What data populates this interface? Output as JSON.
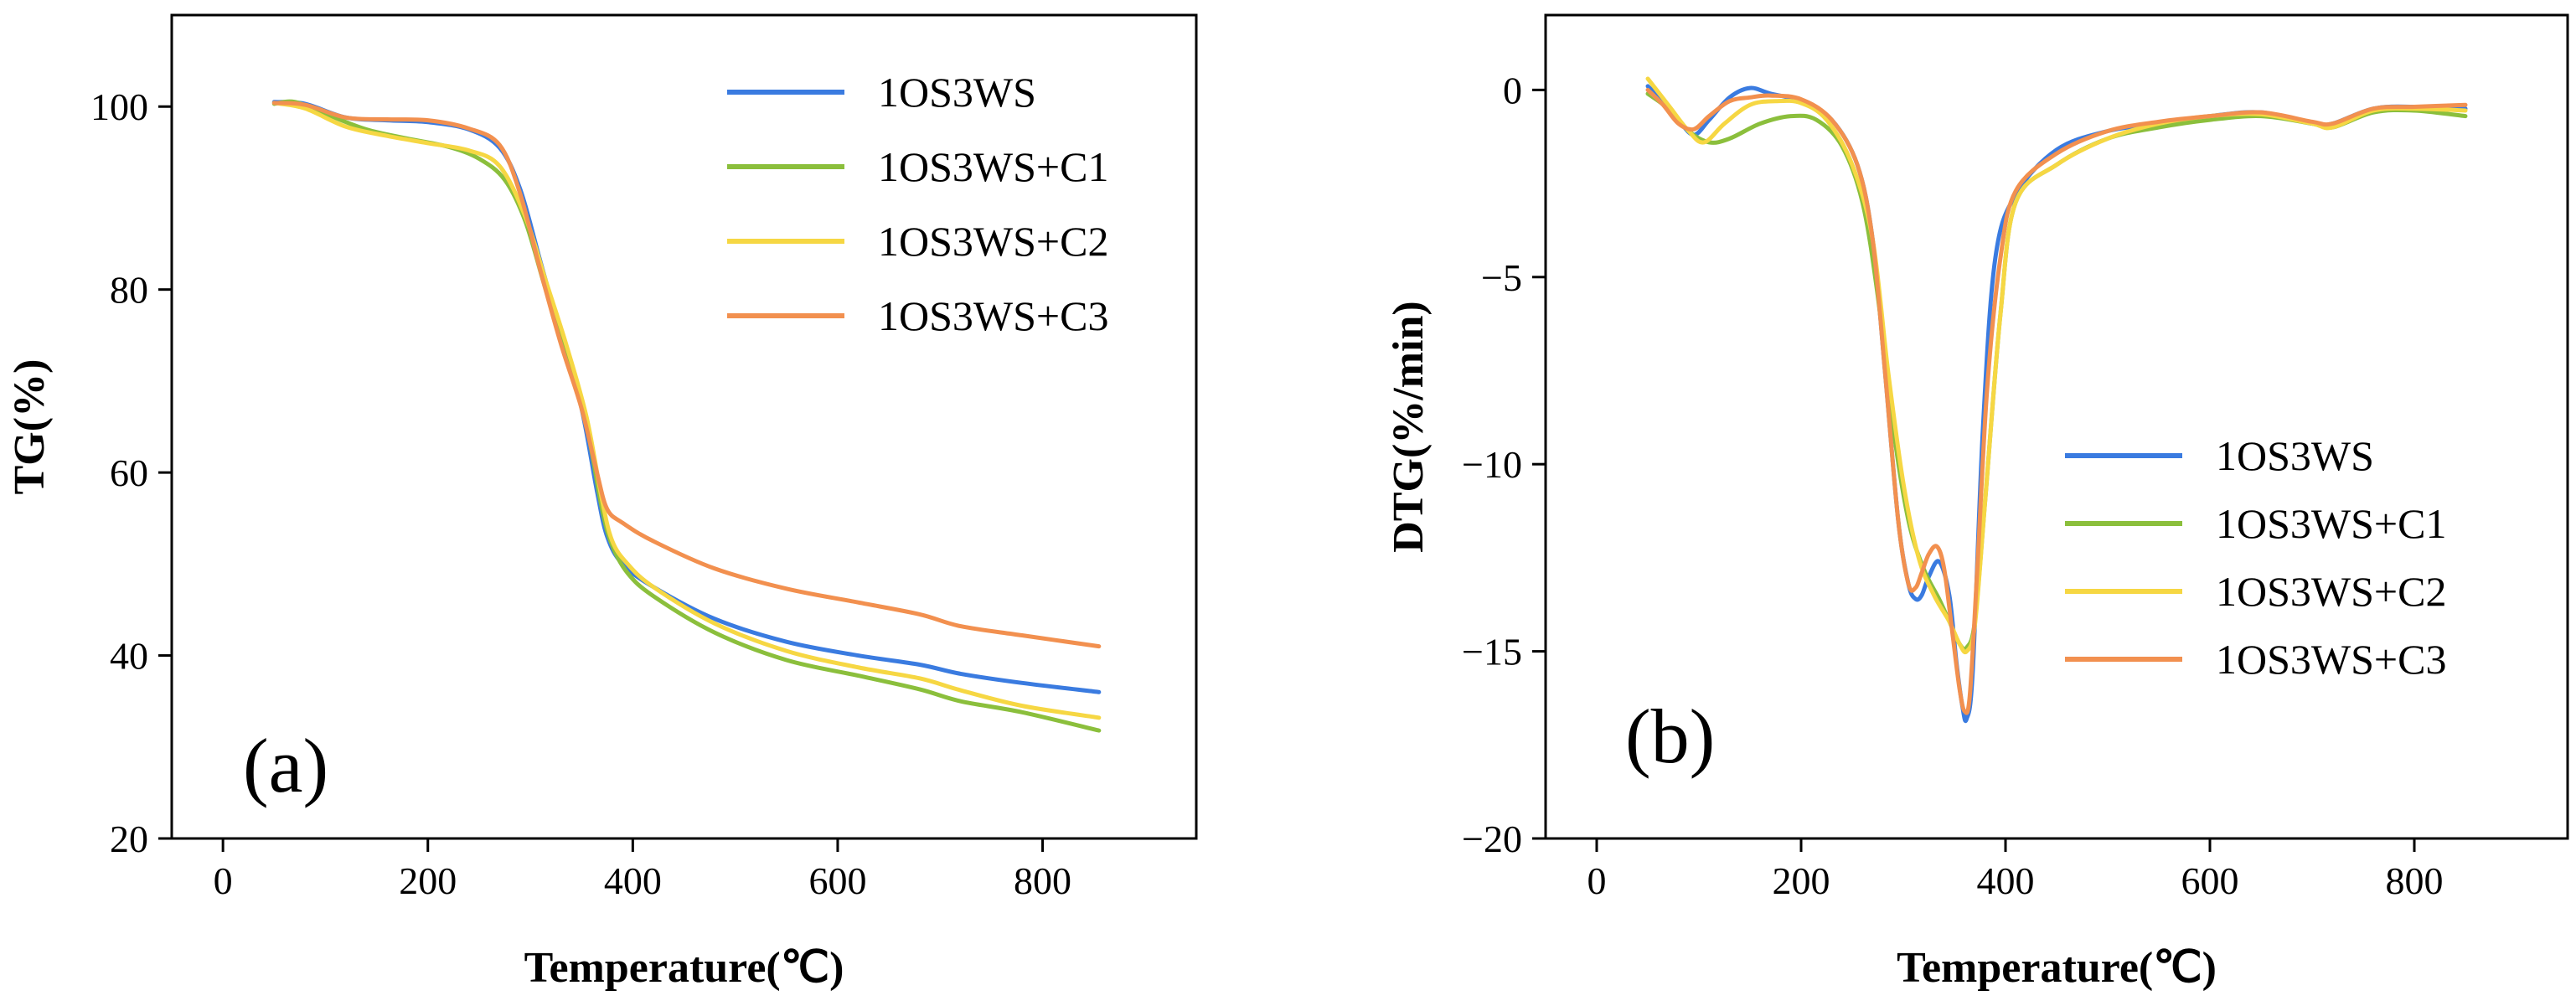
{
  "chart_data": [
    {
      "type": "line",
      "panel_label": "(a)",
      "xlabel": "Temperature(℃)",
      "ylabel": "TG(%)",
      "xlim": [
        -50,
        950
      ],
      "ylim": [
        20,
        110
      ],
      "xticks": [
        0,
        200,
        400,
        600,
        800
      ],
      "yticks": [
        20,
        40,
        60,
        80,
        100
      ],
      "grid": false,
      "legend_position": "top-right",
      "series": [
        {
          "name": "1OS3WS",
          "color": "#3a7be0",
          "x": [
            50,
            80,
            120,
            160,
            200,
            240,
            270,
            290,
            310,
            330,
            350,
            365,
            375,
            390,
            420,
            480,
            550,
            620,
            680,
            720,
            780,
            855
          ],
          "y": [
            100.5,
            100.3,
            98.8,
            98.5,
            98.3,
            97.5,
            95.5,
            91,
            83,
            75,
            67,
            58,
            53,
            50,
            47.5,
            44,
            41.5,
            40,
            39,
            38,
            37,
            36
          ]
        },
        {
          "name": "1OS3WS+C1",
          "color": "#8bbf3c",
          "x": [
            50,
            70,
            100,
            140,
            180,
            220,
            250,
            275,
            295,
            315,
            335,
            355,
            370,
            380,
            395,
            420,
            480,
            550,
            620,
            680,
            720,
            780,
            855
          ],
          "y": [
            100.3,
            100.5,
            99.2,
            97.5,
            96.5,
            95.6,
            94.3,
            92,
            87.5,
            80,
            73,
            65,
            56,
            52,
            49,
            46.5,
            42.5,
            39.5,
            37.8,
            36.3,
            35,
            33.8,
            31.8
          ]
        },
        {
          "name": "1OS3WS+C2",
          "color": "#f6d743",
          "x": [
            50,
            80,
            120,
            160,
            200,
            240,
            270,
            295,
            315,
            335,
            355,
            370,
            380,
            395,
            420,
            480,
            550,
            620,
            680,
            720,
            780,
            855
          ],
          "y": [
            100.4,
            99.8,
            97.8,
            96.8,
            96,
            95.2,
            93.5,
            88,
            81,
            74,
            66,
            57,
            52.5,
            50,
            47.5,
            43.5,
            40.5,
            38.7,
            37.5,
            36.2,
            34.5,
            33.2
          ]
        },
        {
          "name": "1OS3WS+C3",
          "color": "#f2904f",
          "x": [
            50,
            80,
            120,
            160,
            200,
            240,
            270,
            290,
            310,
            330,
            350,
            365,
            375,
            390,
            420,
            480,
            550,
            620,
            680,
            720,
            780,
            855
          ],
          "y": [
            100.4,
            100.2,
            98.8,
            98.6,
            98.5,
            97.6,
            95.8,
            90.5,
            82,
            74,
            67,
            60,
            56,
            54.5,
            52.5,
            49.5,
            47.3,
            45.8,
            44.5,
            43.2,
            42.2,
            41
          ]
        }
      ]
    },
    {
      "type": "line",
      "panel_label": "(b)",
      "xlabel": "Temperature(℃)",
      "ylabel": "DTG(%/min)",
      "xlim": [
        -50,
        950
      ],
      "ylim": [
        -20,
        2
      ],
      "xticks": [
        0,
        200,
        400,
        600,
        800
      ],
      "yticks": [
        -20,
        -15,
        -10,
        -5,
        0
      ],
      "ytick_labels": [
        "−20",
        "−15",
        "−10",
        "−5",
        "0"
      ],
      "grid": false,
      "legend_position": "bottom-right",
      "series": [
        {
          "name": "1OS3WS",
          "color": "#3a7be0",
          "x": [
            50,
            65,
            80,
            95,
            110,
            130,
            150,
            170,
            200,
            230,
            255,
            270,
            282,
            295,
            305,
            312,
            318,
            325,
            335,
            345,
            352,
            358,
            362,
            368,
            378,
            390,
            410,
            450,
            500,
            550,
            600,
            650,
            700,
            720,
            760,
            800,
            850
          ],
          "y": [
            0.1,
            -0.3,
            -0.8,
            -1.2,
            -0.8,
            -0.2,
            0.05,
            -0.1,
            -0.3,
            -0.8,
            -2,
            -4,
            -7.5,
            -11.5,
            -13.2,
            -13.6,
            -13.5,
            -13,
            -12.6,
            -13.5,
            -15.3,
            -16.5,
            -16.8,
            -15.5,
            -9,
            -4.5,
            -2.8,
            -1.6,
            -1.1,
            -0.9,
            -0.7,
            -0.6,
            -0.9,
            -0.9,
            -0.5,
            -0.45,
            -0.5
          ]
        },
        {
          "name": "1OS3WS+C1",
          "color": "#8bbf3c",
          "x": [
            50,
            70,
            90,
            110,
            130,
            160,
            190,
            215,
            240,
            260,
            275,
            290,
            305,
            320,
            335,
            345,
            355,
            362,
            370,
            380,
            395,
            410,
            450,
            500,
            550,
            600,
            650,
            700,
            720,
            760,
            800,
            850
          ],
          "y": [
            -0.1,
            -0.5,
            -1.1,
            -1.4,
            -1.3,
            -0.9,
            -0.7,
            -0.8,
            -1.5,
            -3,
            -5.5,
            -9,
            -11.5,
            -12.8,
            -13.6,
            -14.2,
            -14.8,
            -14.9,
            -14.2,
            -11,
            -6,
            -3,
            -2,
            -1.3,
            -1,
            -0.8,
            -0.7,
            -0.9,
            -1,
            -0.6,
            -0.55,
            -0.7
          ]
        },
        {
          "name": "1OS3WS+C2",
          "color": "#f6d743",
          "x": [
            50,
            70,
            90,
            105,
            125,
            150,
            175,
            200,
            225,
            250,
            270,
            285,
            300,
            315,
            330,
            345,
            355,
            362,
            370,
            380,
            395,
            410,
            450,
            500,
            550,
            600,
            650,
            700,
            720,
            760,
            800,
            850
          ],
          "y": [
            0.3,
            -0.4,
            -1.1,
            -1.4,
            -0.9,
            -0.4,
            -0.3,
            -0.35,
            -0.8,
            -2,
            -4,
            -7.5,
            -10.5,
            -12.5,
            -13.5,
            -14.2,
            -14.8,
            -15,
            -14.3,
            -11,
            -6,
            -3,
            -2,
            -1.3,
            -0.9,
            -0.7,
            -0.65,
            -0.9,
            -1,
            -0.55,
            -0.5,
            -0.55
          ]
        },
        {
          "name": "1OS3WS+C3",
          "color": "#f2904f",
          "x": [
            50,
            65,
            80,
            95,
            110,
            130,
            150,
            170,
            200,
            230,
            255,
            270,
            282,
            295,
            305,
            312,
            318,
            325,
            333,
            340,
            348,
            355,
            360,
            365,
            372,
            382,
            395,
            410,
            450,
            500,
            550,
            600,
            650,
            700,
            720,
            760,
            800,
            850
          ],
          "y": [
            0,
            -0.4,
            -0.9,
            -1.05,
            -0.7,
            -0.3,
            -0.2,
            -0.15,
            -0.25,
            -0.8,
            -2,
            -4,
            -7.5,
            -11.5,
            -13.2,
            -13.3,
            -12.9,
            -12.4,
            -12.2,
            -12.8,
            -14.5,
            -16,
            -16.6,
            -16.2,
            -13,
            -8,
            -4.5,
            -2.7,
            -1.7,
            -1.1,
            -0.85,
            -0.7,
            -0.6,
            -0.85,
            -0.9,
            -0.5,
            -0.45,
            -0.4
          ]
        }
      ]
    }
  ]
}
